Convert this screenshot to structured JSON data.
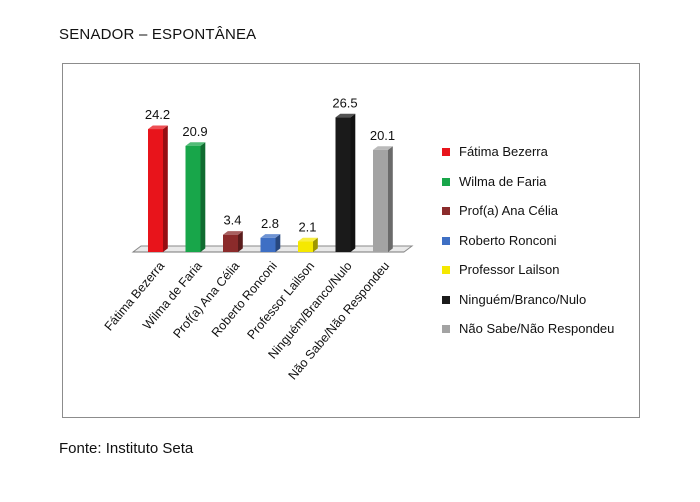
{
  "heading": "SENADOR – ESPONTÂNEA",
  "source": "Fonte: Instituto Seta",
  "chart_data": {
    "type": "bar",
    "title": "",
    "xlabel": "",
    "ylabel": "",
    "ylim": [
      0,
      30
    ],
    "grid": false,
    "legend_position": "right",
    "categories": [
      "Fátima Bezerra",
      "Wilma de Faria",
      "Prof(a) Ana Célia",
      "Roberto Ronconi",
      "Professor Lailson",
      "Ninguém/Branco/Nulo",
      "Não Sabe/Não Respondeu"
    ],
    "values": [
      24.2,
      20.9,
      3.4,
      2.8,
      2.1,
      26.5,
      20.1
    ],
    "value_labels": [
      "24.2",
      "20.9",
      "3.4",
      "2.8",
      "2.1",
      "26.5",
      "20.1"
    ],
    "colors": [
      "#e8141b",
      "#18a64a",
      "#8b2b2b",
      "#3e6fc4",
      "#f5e800",
      "#1a1a1a",
      "#a3a3a3"
    ],
    "legend": [
      "Fátima Bezerra",
      "Wilma de Faria",
      "Prof(a) Ana Célia",
      "Roberto Ronconi",
      "Professor Lailson",
      "Ninguém/Branco/Nulo",
      "Não Sabe/Não Respondeu"
    ]
  }
}
